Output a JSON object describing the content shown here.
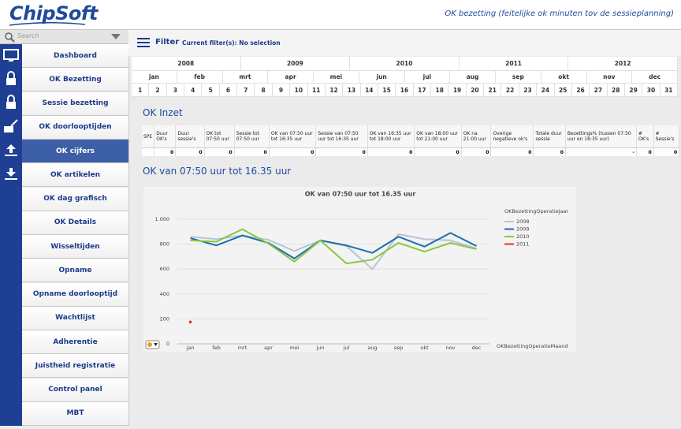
{
  "header": {
    "logo": "ChipSoft",
    "title": "OK bezetting (feitelijke ok minuten tov de sessieplanning)"
  },
  "sidebar": {
    "search_placeholder": "Search",
    "active_index": 4,
    "menu": [
      "Dashboard",
      "OK Bezetting",
      "Sessie bezetting",
      "OK doorlooptijden",
      "OK cijfers",
      "OK artikelen",
      "OK dag grafisch",
      "OK Details",
      "Wisseltijden",
      "Opname",
      "Opname doorlooptijd",
      "Wachtlijst",
      "Adherentie",
      "Juistheid registratie",
      "Control panel",
      "MBT"
    ]
  },
  "filter": {
    "label": "Filter",
    "current": "Current filter(s): No selection"
  },
  "date_selector": {
    "years": [
      2008,
      2009,
      2010,
      2011,
      2012
    ],
    "months": [
      "jan",
      "feb",
      "mrt",
      "apr",
      "mei",
      "jun",
      "jul",
      "aug",
      "sep",
      "okt",
      "nov",
      "dec"
    ],
    "days": [
      1,
      2,
      3,
      4,
      5,
      6,
      7,
      8,
      9,
      10,
      11,
      12,
      13,
      14,
      15,
      16,
      17,
      18,
      19,
      20,
      21,
      22,
      23,
      24,
      25,
      26,
      27,
      28,
      29,
      30,
      31
    ]
  },
  "table": {
    "title": "OK Inzet",
    "columns": [
      "SPE",
      "Duur OK's",
      "Duur sessie's",
      "OK tot 07:50 uur",
      "Sessie tot 07:50 uur",
      "OK van 07:50 uur tot 16:35 uur",
      "Sessie van 07:50 uur tot 16:35 uur",
      "OK van 16:35 uur tot 18:00 uur",
      "OK van 18:00 uur tot 21:00 uur",
      "OK na 21:00 uur",
      "Overige negatieve ok's",
      "Totale duur sessie",
      "Bezettings% (tussen 07:50 uur en 16:35 uur)",
      "# OK's",
      "# Sessie's"
    ],
    "rows": [
      [
        null,
        0,
        0,
        0,
        0,
        0,
        0,
        0,
        0,
        0,
        0,
        0,
        "-",
        0,
        0
      ]
    ]
  },
  "chart_data": {
    "type": "line",
    "title": "OK van 07:50 uur tot 16.35 uur",
    "categories": [
      "jan",
      "feb",
      "mrt",
      "apr",
      "mei",
      "jun",
      "jul",
      "aug",
      "sep",
      "okt",
      "nov",
      "dec"
    ],
    "x_label": "OKBezettingOperatieMaand",
    "legend_title": "OKBezettingOperatieJaar",
    "series": [
      {
        "name": "2008",
        "color": "#b8c4d6",
        "values": [
          860,
          840,
          870,
          835,
          745,
          830,
          785,
          600,
          880,
          840,
          830,
          765
        ]
      },
      {
        "name": "2009",
        "color": "#1c6fae",
        "values": [
          848,
          790,
          870,
          810,
          685,
          830,
          790,
          730,
          860,
          780,
          890,
          785
        ]
      },
      {
        "name": "2010",
        "color": "#8cc63f",
        "values": [
          830,
          820,
          920,
          805,
          660,
          830,
          645,
          675,
          810,
          740,
          810,
          760
        ]
      },
      {
        "name": "2011",
        "color": "#e0312c",
        "values": [
          175,
          null,
          null,
          null,
          null,
          null,
          null,
          null,
          null,
          null,
          null,
          null
        ]
      }
    ],
    "ylim": [
      0,
      1080
    ],
    "yticks": [
      0,
      200,
      400,
      600,
      800,
      {
        "value": 1000,
        "label": "1.000"
      }
    ],
    "grid": true,
    "legend": "right"
  }
}
